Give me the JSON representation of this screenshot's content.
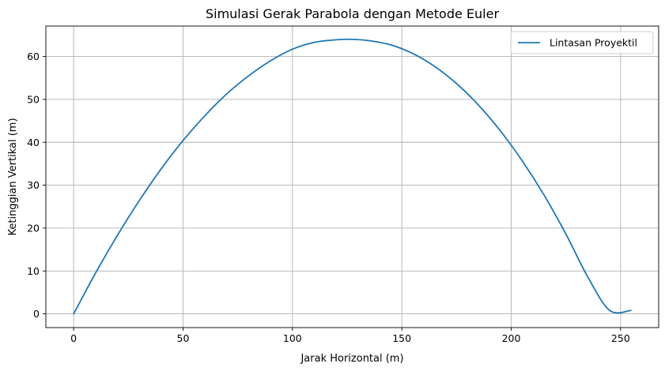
{
  "chart_data": {
    "type": "line",
    "title": "Simulasi Gerak Parabola dengan Metode Euler",
    "xlabel": "Jarak Horizontal (m)",
    "ylabel": "Ketinggian Vertikal (m)",
    "xlim": [
      -12.7,
      267.4
    ],
    "ylim": [
      -3.2,
      67.1
    ],
    "xticks": [
      0,
      50,
      100,
      150,
      200,
      250
    ],
    "yticks": [
      0,
      10,
      20,
      30,
      40,
      50,
      60
    ],
    "grid": true,
    "legend_position": "top-right",
    "series": [
      {
        "name": "Lintasan Proyektil",
        "color": "#1f77b4",
        "x": [
          0,
          10,
          20,
          30,
          40,
          50,
          60,
          70,
          80,
          90,
          100,
          110,
          120,
          127.5,
          135,
          145,
          155,
          165,
          175,
          185,
          195,
          205,
          215,
          225,
          235,
          245,
          254.7
        ],
        "y": [
          0,
          9.5,
          18.3,
          26.4,
          33.8,
          40.4,
          46.2,
          51.3,
          55.5,
          59.0,
          61.7,
          63.3,
          63.9,
          64.0,
          63.7,
          62.7,
          60.7,
          57.7,
          53.7,
          48.7,
          42.7,
          35.7,
          27.7,
          18.6,
          8.6,
          0.8,
          0.8
        ]
      }
    ]
  }
}
